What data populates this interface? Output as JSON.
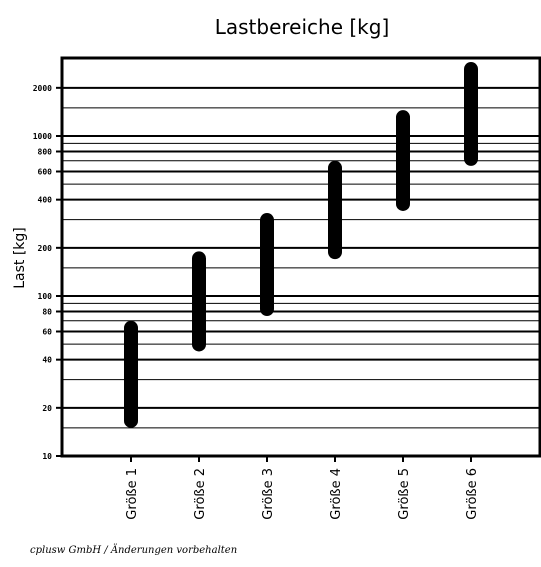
{
  "chart_data": {
    "type": "range-bar",
    "title": "Lastbereiche [kg]",
    "xlabel": "",
    "ylabel": "Last [kg]",
    "yscale": "log",
    "ylim": [
      10,
      3000
    ],
    "grid": true,
    "yticks": [
      10,
      20,
      40,
      60,
      80,
      100,
      200,
      400,
      600,
      800,
      1000,
      2000
    ],
    "ytick_labels": [
      "10",
      "20",
      "40",
      "60",
      "80",
      "100",
      "200",
      "400",
      "600",
      "800",
      "1000",
      "2000"
    ],
    "categories": [
      "Größe 1",
      "Größe 2",
      "Größe 3",
      "Größe 4",
      "Größe 5",
      "Größe 6"
    ],
    "ranges": [
      {
        "low": 15,
        "high": 70
      },
      {
        "low": 45,
        "high": 190
      },
      {
        "low": 75,
        "high": 330
      },
      {
        "low": 170,
        "high": 700
      },
      {
        "low": 340,
        "high": 1450
      },
      {
        "low": 650,
        "high": 2900
      }
    ],
    "color": "#000000"
  },
  "footer": "cplusw GmbH / Änderungen vorbehalten"
}
